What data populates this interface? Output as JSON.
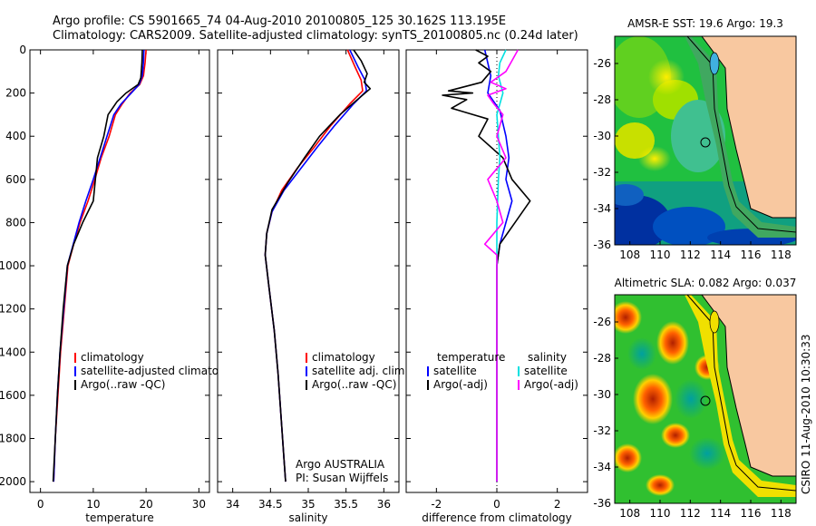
{
  "figure": {
    "title_line1": "Argo profile: CS 5901665_74 04-Aug-2010 20100805_125 30.162S 113.195E",
    "title_line2": "Climatology: CARS2009. Satellite-adjusted climatology: synTS_20100805.nc (0.24d later)",
    "side_label": "CSIRO 11-Aug-2010 10:30:33",
    "pi_line1": "Argo AUSTRALIA",
    "pi_line2": "PI: Susan Wijffels"
  },
  "colors": {
    "climatology": "#ff0000",
    "satellite": "#0000ff",
    "argo": "#000000",
    "salinity_satellite": "#00e0e0",
    "salinity_argo": "#ff00ff",
    "land": "#f8c8a0"
  },
  "chart_data": [
    {
      "type": "line",
      "xlabel": "temperature",
      "xlim": [
        -2,
        32
      ],
      "ylim": [
        0,
        2050
      ],
      "x_ticks": [
        0,
        10,
        20,
        30
      ],
      "y_ticks": [
        0,
        200,
        400,
        600,
        800,
        1000,
        1200,
        1400,
        1600,
        1800,
        2000
      ],
      "legend": [
        "climatology",
        "satellite-adjusted climatology",
        "Argo(..raw -QC)"
      ],
      "series": [
        {
          "name": "climatology",
          "color": "#ff0000",
          "points": [
            [
              20.0,
              0
            ],
            [
              19.8,
              60
            ],
            [
              19.5,
              120
            ],
            [
              18.8,
              160
            ],
            [
              17.0,
              200
            ],
            [
              15.5,
              250
            ],
            [
              14.2,
              300
            ],
            [
              13.0,
              400
            ],
            [
              11.5,
              500
            ],
            [
              10.3,
              600
            ],
            [
              9.0,
              700
            ],
            [
              7.5,
              800
            ],
            [
              6.3,
              900
            ],
            [
              5.2,
              1000
            ],
            [
              4.5,
              1200
            ],
            [
              3.8,
              1400
            ],
            [
              3.3,
              1600
            ],
            [
              2.8,
              1800
            ],
            [
              2.5,
              2000
            ]
          ]
        },
        {
          "name": "satellite-adjusted climatology",
          "color": "#0000ff",
          "points": [
            [
              19.6,
              0
            ],
            [
              19.5,
              60
            ],
            [
              19.3,
              120
            ],
            [
              18.7,
              160
            ],
            [
              17.2,
              200
            ],
            [
              15.3,
              250
            ],
            [
              13.9,
              300
            ],
            [
              12.6,
              400
            ],
            [
              11.3,
              500
            ],
            [
              10.0,
              600
            ],
            [
              8.6,
              700
            ],
            [
              7.3,
              800
            ],
            [
              6.2,
              900
            ],
            [
              5.1,
              1000
            ],
            [
              4.4,
              1200
            ],
            [
              3.7,
              1400
            ],
            [
              3.2,
              1600
            ],
            [
              2.8,
              1800
            ],
            [
              2.5,
              2000
            ]
          ]
        },
        {
          "name": "Argo(..raw -QC)",
          "color": "#000000",
          "points": [
            [
              19.3,
              0
            ],
            [
              19.2,
              60
            ],
            [
              19.0,
              130
            ],
            [
              18.5,
              160
            ],
            [
              16.2,
              200
            ],
            [
              14.5,
              240
            ],
            [
              12.8,
              300
            ],
            [
              12.0,
              400
            ],
            [
              10.8,
              500
            ],
            [
              10.4,
              600
            ],
            [
              10.0,
              700
            ],
            [
              8.0,
              800
            ],
            [
              6.3,
              900
            ],
            [
              5.1,
              1000
            ],
            [
              4.3,
              1200
            ],
            [
              3.7,
              1400
            ],
            [
              3.2,
              1600
            ],
            [
              2.8,
              1800
            ],
            [
              2.4,
              2000
            ]
          ]
        }
      ]
    },
    {
      "type": "line",
      "xlabel": "salinity",
      "xlim": [
        33.8,
        36.2
      ],
      "ylim": [
        0,
        2050
      ],
      "x_ticks": [
        34,
        34.5,
        35,
        35.5,
        36
      ],
      "legend": [
        "climatology",
        "satellite adj. clim.",
        "Argo(..raw -QC)"
      ],
      "series": [
        {
          "name": "climatology",
          "color": "#ff0000",
          "points": [
            [
              35.52,
              0
            ],
            [
              35.62,
              80
            ],
            [
              35.7,
              140
            ],
            [
              35.72,
              190
            ],
            [
              35.55,
              250
            ],
            [
              35.3,
              350
            ],
            [
              35.08,
              450
            ],
            [
              34.85,
              550
            ],
            [
              34.65,
              650
            ],
            [
              34.52,
              750
            ],
            [
              34.45,
              850
            ],
            [
              34.43,
              950
            ],
            [
              34.48,
              1100
            ],
            [
              34.55,
              1300
            ],
            [
              34.6,
              1500
            ],
            [
              34.64,
              1700
            ],
            [
              34.68,
              1900
            ],
            [
              34.7,
              2000
            ]
          ]
        },
        {
          "name": "satellite adj. clim.",
          "color": "#0000ff",
          "points": [
            [
              35.55,
              0
            ],
            [
              35.66,
              80
            ],
            [
              35.75,
              140
            ],
            [
              35.77,
              190
            ],
            [
              35.6,
              250
            ],
            [
              35.35,
              350
            ],
            [
              35.12,
              450
            ],
            [
              34.9,
              550
            ],
            [
              34.68,
              650
            ],
            [
              34.52,
              750
            ],
            [
              34.45,
              850
            ],
            [
              34.43,
              950
            ],
            [
              34.48,
              1100
            ],
            [
              34.55,
              1300
            ],
            [
              34.6,
              1500
            ],
            [
              34.64,
              1700
            ],
            [
              34.68,
              1900
            ],
            [
              34.7,
              2000
            ]
          ]
        },
        {
          "name": "Argo(..raw -QC)",
          "color": "#000000",
          "points": [
            [
              35.6,
              0
            ],
            [
              35.7,
              50
            ],
            [
              35.78,
              110
            ],
            [
              35.74,
              150
            ],
            [
              35.82,
              180
            ],
            [
              35.65,
              230
            ],
            [
              35.42,
              300
            ],
            [
              35.15,
              400
            ],
            [
              34.95,
              500
            ],
            [
              34.72,
              620
            ],
            [
              34.52,
              740
            ],
            [
              34.45,
              850
            ],
            [
              34.43,
              950
            ],
            [
              34.48,
              1100
            ],
            [
              34.55,
              1300
            ],
            [
              34.6,
              1500
            ],
            [
              34.64,
              1700
            ],
            [
              34.68,
              1900
            ],
            [
              34.7,
              2000
            ]
          ]
        }
      ]
    },
    {
      "type": "line",
      "xlabel": "difference from climatology",
      "xlim": [
        -3,
        3
      ],
      "ylim": [
        0,
        2050
      ],
      "x_ticks": [
        -2,
        0,
        2
      ],
      "legend": [
        "temperature",
        "satellite",
        "Argo(-adj)",
        "salinity",
        "satellite",
        "Argo(-adj)"
      ],
      "series": [
        {
          "name": "temperature satellite",
          "color": "#0000ff",
          "points": [
            [
              -0.4,
              0
            ],
            [
              -0.3,
              60
            ],
            [
              -0.2,
              120
            ],
            [
              -0.3,
              200
            ],
            [
              0.1,
              280
            ],
            [
              0.3,
              400
            ],
            [
              0.4,
              500
            ],
            [
              0.3,
              600
            ],
            [
              0.5,
              700
            ],
            [
              0.3,
              800
            ],
            [
              0.1,
              900
            ],
            [
              0.0,
              1000
            ],
            [
              0.0,
              1200
            ],
            [
              0.0,
              1600
            ],
            [
              0.0,
              2000
            ]
          ]
        },
        {
          "name": "temperature Argo(-adj)",
          "color": "#000000",
          "points": [
            [
              -0.7,
              0
            ],
            [
              -0.3,
              30
            ],
            [
              -0.6,
              60
            ],
            [
              -0.2,
              100
            ],
            [
              -0.5,
              150
            ],
            [
              -1.6,
              190
            ],
            [
              -0.8,
              200
            ],
            [
              -1.8,
              210
            ],
            [
              -1.0,
              230
            ],
            [
              -1.5,
              270
            ],
            [
              -0.3,
              320
            ],
            [
              -0.6,
              400
            ],
            [
              0.2,
              500
            ],
            [
              0.5,
              600
            ],
            [
              1.1,
              700
            ],
            [
              0.6,
              800
            ],
            [
              0.1,
              900
            ],
            [
              0.0,
              1000
            ],
            [
              0.0,
              1200
            ],
            [
              0.0,
              1600
            ],
            [
              0.0,
              2000
            ]
          ]
        },
        {
          "name": "salinity satellite",
          "color": "#00e0e0",
          "points": [
            [
              0.3,
              0
            ],
            [
              0.1,
              60
            ],
            [
              0.05,
              120
            ],
            [
              0.2,
              200
            ],
            [
              0.0,
              300
            ],
            [
              0.05,
              400
            ],
            [
              0.1,
              500
            ],
            [
              0.05,
              600
            ],
            [
              0.0,
              800
            ],
            [
              0.0,
              1000
            ],
            [
              0.0,
              1200
            ],
            [
              0.0,
              1600
            ],
            [
              0.0,
              2000
            ]
          ]
        },
        {
          "name": "salinity Argo(-adj)",
          "color": "#ff00ff",
          "points": [
            [
              0.7,
              0
            ],
            [
              0.5,
              50
            ],
            [
              0.3,
              100
            ],
            [
              -0.2,
              150
            ],
            [
              0.3,
              180
            ],
            [
              -0.3,
              210
            ],
            [
              -0.1,
              250
            ],
            [
              0.2,
              300
            ],
            [
              0.0,
              400
            ],
            [
              0.3,
              500
            ],
            [
              -0.3,
              600
            ],
            [
              0.0,
              700
            ],
            [
              0.2,
              800
            ],
            [
              -0.4,
              900
            ],
            [
              0.0,
              950
            ],
            [
              0.0,
              1200
            ],
            [
              0.0,
              1600
            ],
            [
              0.0,
              2000
            ]
          ]
        }
      ]
    },
    {
      "type": "heatmap",
      "title": "AMSR-E SST: 19.6 Argo: 19.3",
      "xlim": [
        107,
        119
      ],
      "ylim": [
        -36,
        -24.5
      ],
      "x_ticks": [
        108,
        110,
        112,
        114,
        116,
        118
      ],
      "y_ticks": [
        -26,
        -28,
        -30,
        -32,
        -34,
        -36
      ],
      "profile_marker": {
        "lon": 113.195,
        "lat": -30.162
      }
    },
    {
      "type": "heatmap",
      "title": "Altimetric SLA: 0.082 Argo: 0.037",
      "xlim": [
        107,
        119
      ],
      "ylim": [
        -36,
        -24.5
      ],
      "x_ticks": [
        108,
        110,
        112,
        114,
        116,
        118
      ],
      "y_ticks": [
        -26,
        -28,
        -30,
        -32,
        -34,
        -36
      ],
      "profile_marker": {
        "lon": 113.195,
        "lat": -30.162
      }
    }
  ]
}
